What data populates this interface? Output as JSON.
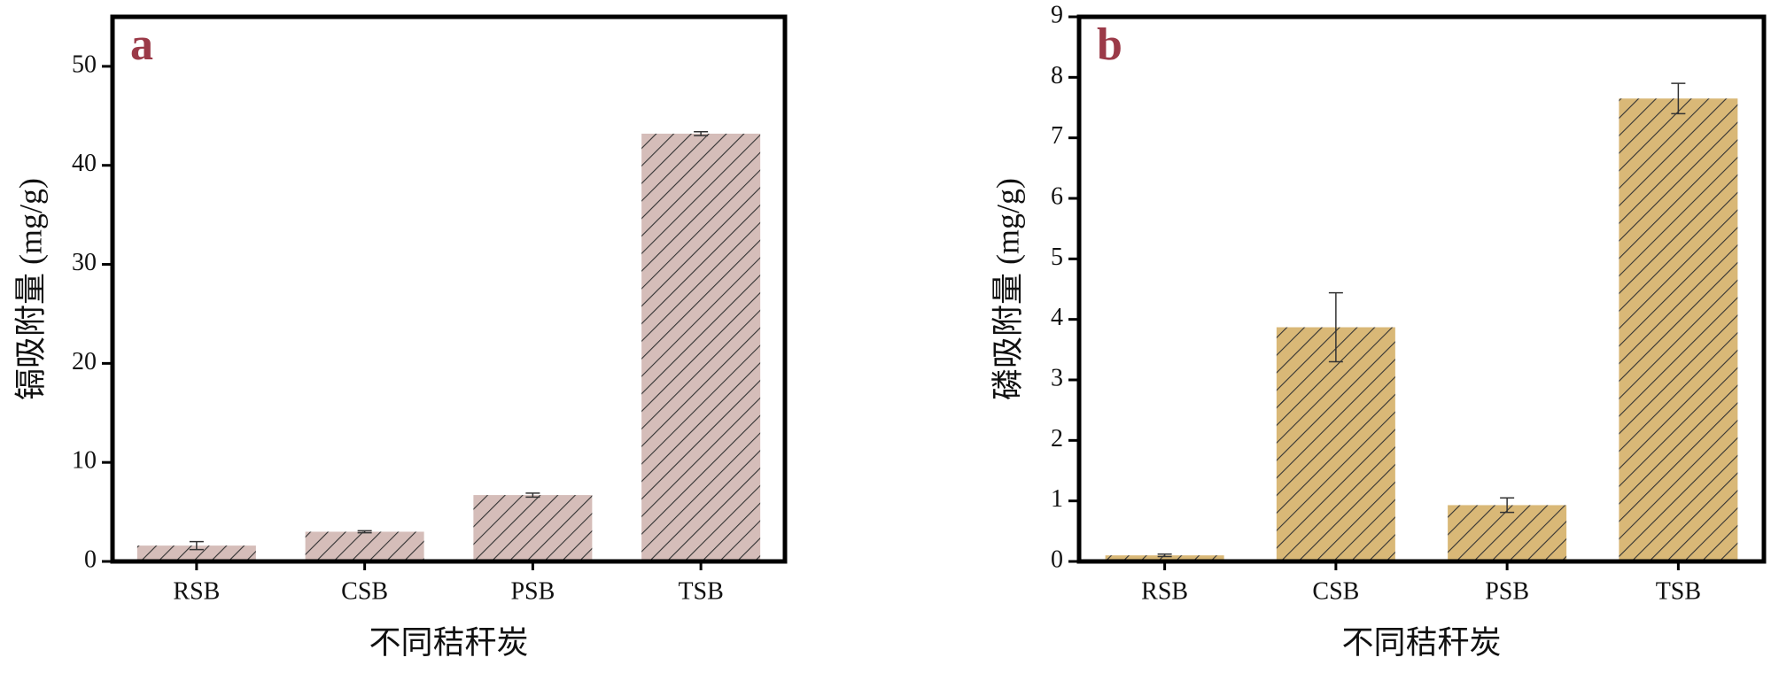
{
  "chart_data": [
    {
      "type": "bar",
      "panel": "a",
      "ylabel": "镉吸附量 (mg/g)",
      "xlabel": "不同秸秆炭",
      "categories": [
        "RSB",
        "CSB",
        "PSB",
        "TSB"
      ],
      "values": [
        1.6,
        3.0,
        6.7,
        43.2
      ],
      "errors": [
        0.4,
        0.1,
        0.2,
        0.2
      ],
      "color": "#d5bdb9",
      "ylim": [
        0,
        55
      ],
      "yticks": [
        0,
        10,
        20,
        30,
        40,
        50
      ]
    },
    {
      "type": "bar",
      "panel": "b",
      "ylabel": "磷吸附量 (mg/g)",
      "xlabel": "不同秸秆炭",
      "categories": [
        "RSB",
        "CSB",
        "PSB",
        "TSB"
      ],
      "values": [
        0.1,
        3.87,
        0.93,
        7.65
      ],
      "errors": [
        0.02,
        0.57,
        0.12,
        0.25
      ],
      "color": "#d9b877",
      "ylim": [
        0,
        9
      ],
      "yticks": [
        0,
        1,
        2,
        3,
        4,
        5,
        6,
        7,
        8,
        9
      ]
    }
  ]
}
